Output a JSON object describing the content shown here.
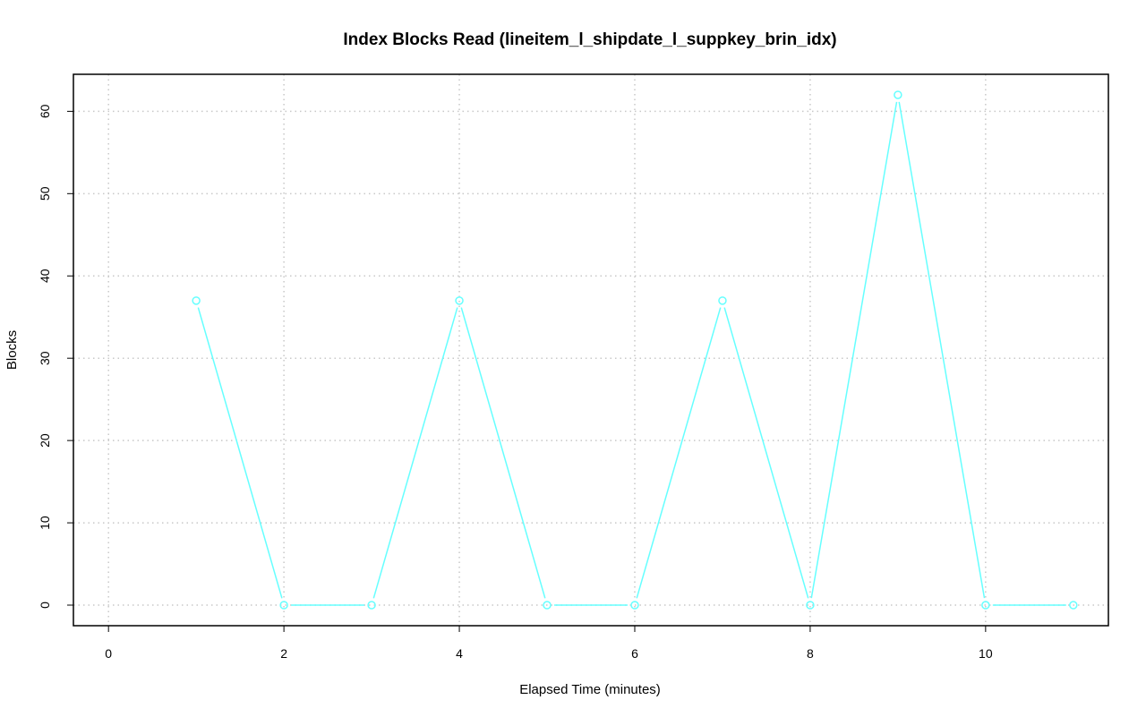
{
  "chart_data": {
    "type": "line",
    "title": "Index Blocks Read (lineitem_l_shipdate_l_suppkey_brin_idx)",
    "xlabel": "Elapsed Time (minutes)",
    "ylabel": "Blocks",
    "xlim": [
      -0.4,
      11.4
    ],
    "ylim": [
      -2.5,
      64.5
    ],
    "xticks": [
      0,
      2,
      4,
      6,
      8,
      10
    ],
    "yticks": [
      0,
      10,
      20,
      30,
      40,
      50,
      60
    ],
    "grid": true,
    "series": [
      {
        "color": "#66ffff",
        "markers": "open-circle",
        "x": [
          1,
          2,
          3,
          4,
          5,
          6,
          7,
          8,
          9,
          10,
          11
        ],
        "y": [
          37,
          0,
          0,
          37,
          0,
          0,
          37,
          0,
          62,
          0,
          0
        ]
      }
    ]
  }
}
